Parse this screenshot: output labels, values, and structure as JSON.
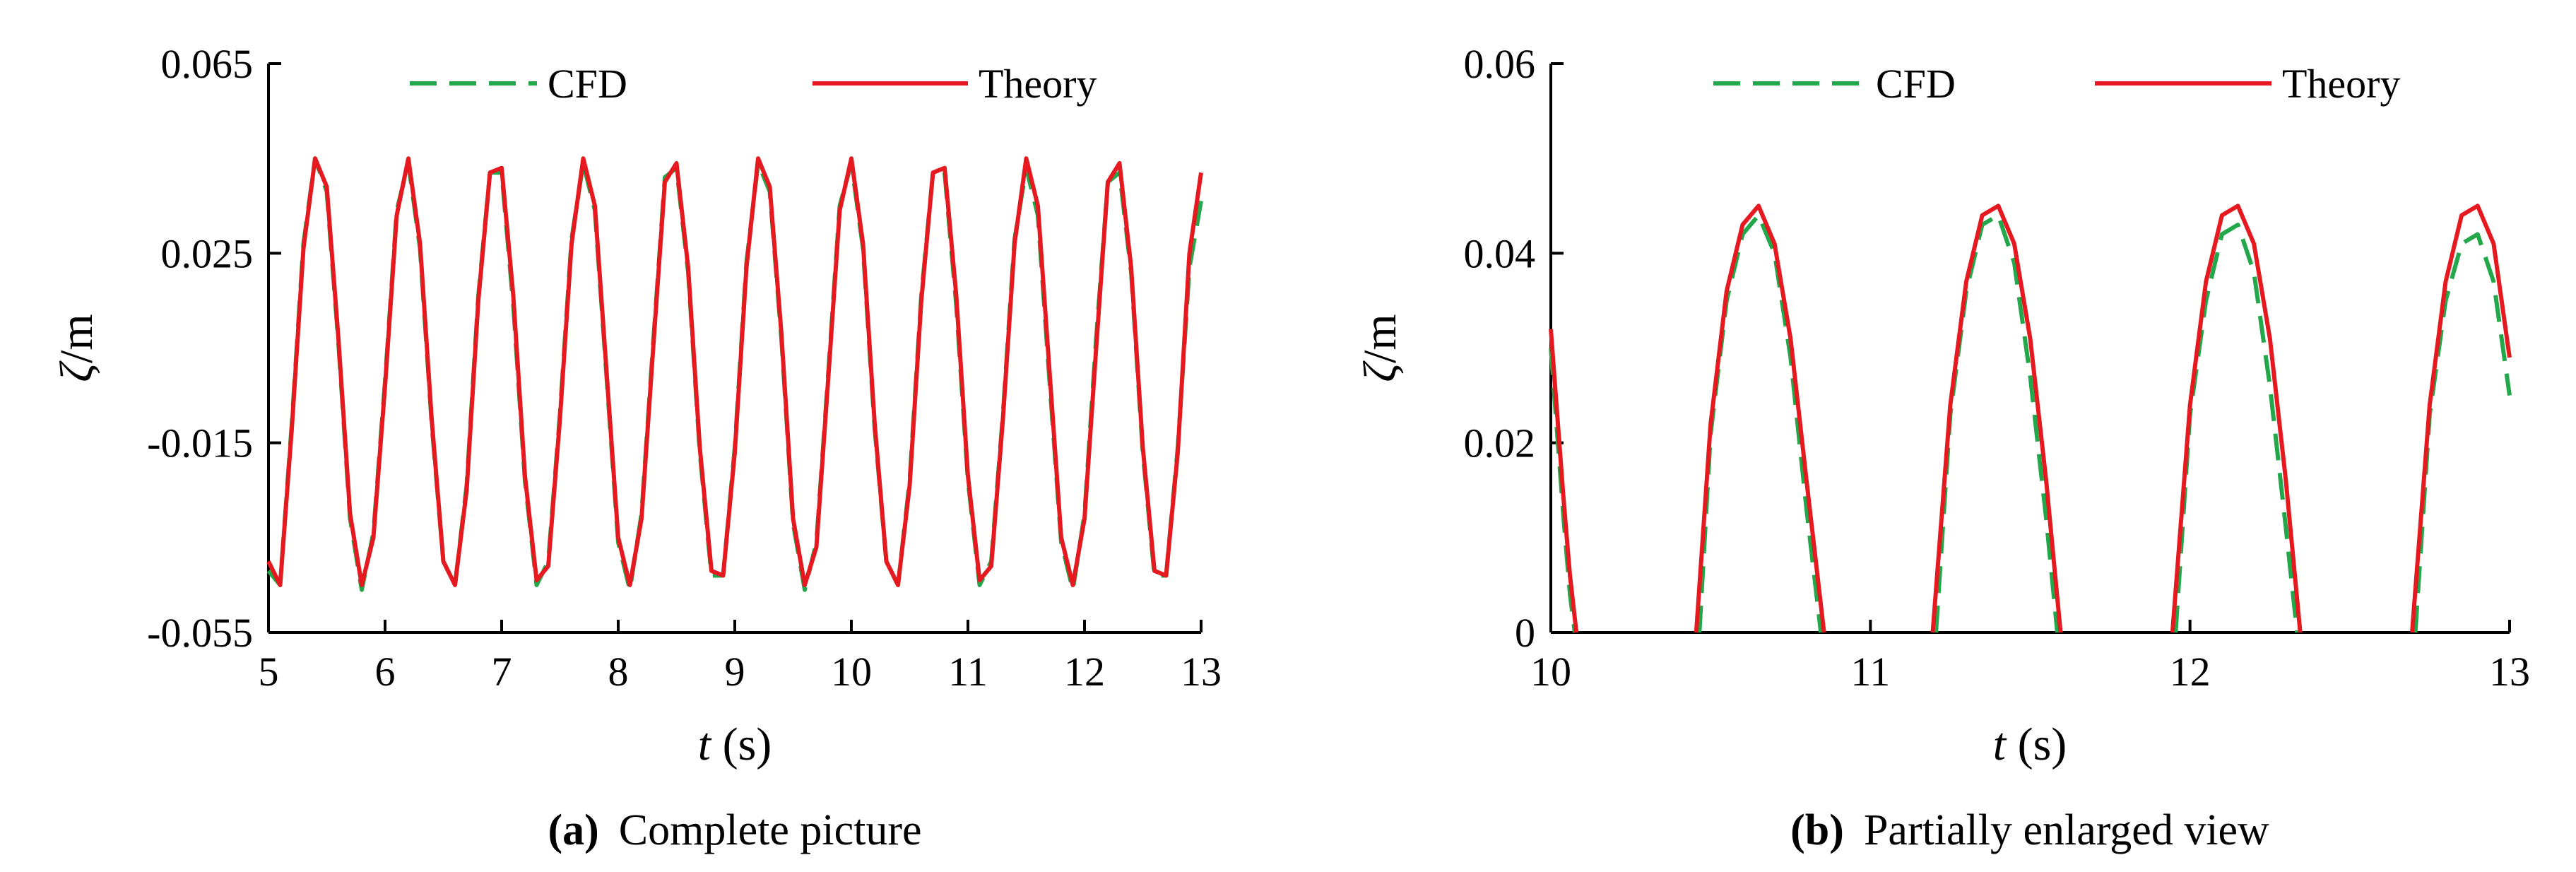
{
  "chart_data": [
    {
      "type": "line",
      "caption_label": "(a)",
      "caption_text": "Complete picture",
      "xlabel_var": "t",
      "xlabel_unit": " (s)",
      "ylabel_var": "ζ",
      "ylabel_unit": "/m",
      "xlim": [
        5,
        13
      ],
      "ylim": [
        -0.055,
        0.065
      ],
      "xticks": [
        5,
        6,
        7,
        8,
        9,
        10,
        11,
        12,
        13
      ],
      "xtick_labels": [
        "5",
        "6",
        "7",
        "8",
        "9",
        "10",
        "11",
        "12",
        "13"
      ],
      "yticks": [
        -0.055,
        -0.015,
        0.025,
        0.065
      ],
      "ytick_labels": [
        "-0.055",
        "-0.015",
        "0.025",
        "0.065"
      ],
      "legend_position": "top",
      "grid": false,
      "series": [
        {
          "name": "CFD",
          "style": "dashed",
          "color": "#22a84a",
          "x": [
            5.0,
            5.1,
            5.2,
            5.3,
            5.4,
            5.5,
            5.6,
            5.7,
            5.8,
            5.9,
            6.0,
            6.1,
            6.2,
            6.3,
            6.4,
            6.5,
            6.6,
            6.7,
            6.8,
            6.9,
            7.0,
            7.1,
            7.2,
            7.3,
            7.4,
            7.5,
            7.6,
            7.7,
            7.8,
            7.9,
            8.0,
            8.1,
            8.2,
            8.3,
            8.4,
            8.5,
            8.6,
            8.7,
            8.8,
            8.9,
            9.0,
            9.1,
            9.2,
            9.3,
            9.4,
            9.5,
            9.6,
            9.7,
            9.8,
            9.9,
            10.0,
            10.1,
            10.2,
            10.3,
            10.4,
            10.5,
            10.6,
            10.7,
            10.8,
            10.9,
            11.0,
            11.1,
            11.2,
            11.3,
            11.4,
            11.5,
            11.6,
            11.7,
            11.8,
            11.9,
            12.0,
            12.1,
            12.2,
            12.3,
            12.4,
            12.5,
            12.6,
            12.7,
            12.8,
            12.9,
            13.0
          ],
          "y": [
            -0.042,
            -0.045,
            -0.011,
            0.027,
            0.045,
            0.038,
            0.006,
            -0.031,
            -0.046,
            -0.034,
            -0.002,
            0.034,
            0.044,
            0.026,
            -0.011,
            -0.04,
            -0.045,
            -0.024,
            0.016,
            0.042,
            0.042,
            0.014,
            -0.023,
            -0.045,
            -0.04,
            -0.009,
            0.028,
            0.044,
            0.034,
            -0.001,
            -0.036,
            -0.046,
            -0.03,
            0.006,
            0.041,
            0.043,
            0.021,
            -0.017,
            -0.043,
            -0.043,
            -0.016,
            0.023,
            0.044,
            0.038,
            0.007,
            -0.032,
            -0.046,
            -0.036,
            -0.001,
            0.035,
            0.044,
            0.026,
            -0.012,
            -0.04,
            -0.045,
            -0.023,
            0.016,
            0.042,
            0.042,
            0.014,
            -0.023,
            -0.045,
            -0.04,
            -0.009,
            0.028,
            0.043,
            0.033,
            -0.002,
            -0.036,
            -0.046,
            -0.03,
            0.007,
            0.04,
            0.042,
            0.021,
            -0.017,
            -0.043,
            -0.043,
            -0.016,
            0.022,
            0.036
          ]
        },
        {
          "name": "Theory",
          "style": "solid",
          "color": "#e5191f",
          "x": [
            5.0,
            5.1,
            5.2,
            5.3,
            5.4,
            5.5,
            5.6,
            5.7,
            5.8,
            5.9,
            6.0,
            6.1,
            6.2,
            6.3,
            6.4,
            6.5,
            6.6,
            6.7,
            6.8,
            6.9,
            7.0,
            7.1,
            7.2,
            7.3,
            7.4,
            7.5,
            7.6,
            7.7,
            7.8,
            7.9,
            8.0,
            8.1,
            8.2,
            8.3,
            8.4,
            8.5,
            8.6,
            8.7,
            8.8,
            8.9,
            9.0,
            9.1,
            9.2,
            9.3,
            9.4,
            9.5,
            9.6,
            9.7,
            9.8,
            9.9,
            10.0,
            10.1,
            10.2,
            10.3,
            10.4,
            10.5,
            10.6,
            10.7,
            10.8,
            10.9,
            11.0,
            11.1,
            11.2,
            11.3,
            11.4,
            11.5,
            11.6,
            11.7,
            11.8,
            11.9,
            12.0,
            12.1,
            12.2,
            12.3,
            12.4,
            12.5,
            12.6,
            12.7,
            12.8,
            12.9,
            13.0
          ],
          "y": [
            -0.04,
            -0.045,
            -0.012,
            0.026,
            0.045,
            0.039,
            0.007,
            -0.03,
            -0.045,
            -0.035,
            -0.003,
            0.033,
            0.045,
            0.027,
            -0.01,
            -0.04,
            -0.045,
            -0.025,
            0.015,
            0.042,
            0.043,
            0.016,
            -0.022,
            -0.044,
            -0.041,
            -0.01,
            0.027,
            0.045,
            0.035,
            0.0,
            -0.035,
            -0.045,
            -0.031,
            0.005,
            0.04,
            0.044,
            0.022,
            -0.016,
            -0.042,
            -0.043,
            -0.017,
            0.022,
            0.045,
            0.039,
            0.008,
            -0.031,
            -0.045,
            -0.037,
            -0.002,
            0.034,
            0.045,
            0.027,
            -0.011,
            -0.04,
            -0.045,
            -0.024,
            0.015,
            0.042,
            0.043,
            0.016,
            -0.022,
            -0.044,
            -0.041,
            -0.01,
            0.027,
            0.045,
            0.035,
            0.0,
            -0.035,
            -0.045,
            -0.031,
            0.005,
            0.04,
            0.044,
            0.022,
            -0.016,
            -0.042,
            -0.043,
            -0.017,
            0.025,
            0.042
          ]
        }
      ]
    },
    {
      "type": "line",
      "caption_label": "(b)",
      "caption_text": "Partially enlarged view",
      "xlabel_var": "t",
      "xlabel_unit": " (s)",
      "ylabel_var": "ζ",
      "ylabel_unit": "/m",
      "xlim": [
        10,
        13
      ],
      "ylim": [
        0,
        0.06
      ],
      "xticks": [
        10,
        11,
        12,
        13
      ],
      "xtick_labels": [
        "10",
        "11",
        "12",
        "13"
      ],
      "yticks": [
        0,
        0.02,
        0.04,
        0.06
      ],
      "ytick_labels": [
        "0",
        "0.02",
        "0.04",
        "0.06"
      ],
      "legend_position": "top",
      "grid": false,
      "series": [
        {
          "name": "CFD",
          "style": "dashed",
          "color": "#22a84a",
          "segments": [
            {
              "x": [
                10.0,
                10.02,
                10.04,
                10.06,
                10.075
              ],
              "y": [
                0.03,
                0.021,
                0.012,
                0.004,
                0.0
              ]
            },
            {
              "x": [
                10.465,
                10.5,
                10.55,
                10.6,
                10.65,
                10.7,
                10.75,
                10.8,
                10.845
              ],
              "y": [
                0.0,
                0.021,
                0.035,
                0.042,
                0.044,
                0.04,
                0.029,
                0.013,
                0.0
              ]
            },
            {
              "x": [
                11.205,
                11.25,
                11.3,
                11.35,
                11.4,
                11.45,
                11.5,
                11.55,
                11.585
              ],
              "y": [
                0.0,
                0.023,
                0.036,
                0.043,
                0.044,
                0.039,
                0.027,
                0.012,
                0.0
              ]
            },
            {
              "x": [
                11.955,
                12.0,
                12.05,
                12.1,
                12.15,
                12.2,
                12.25,
                12.3,
                12.335
              ],
              "y": [
                0.0,
                0.023,
                0.035,
                0.042,
                0.043,
                0.038,
                0.026,
                0.011,
                0.0
              ]
            },
            {
              "x": [
                12.705,
                12.75,
                12.8,
                12.85,
                12.9,
                12.95,
                13.0
              ],
              "y": [
                0.0,
                0.023,
                0.035,
                0.041,
                0.042,
                0.037,
                0.025
              ]
            }
          ]
        },
        {
          "name": "Theory",
          "style": "solid",
          "color": "#e5191f",
          "segments": [
            {
              "x": [
                10.0,
                10.02,
                10.04,
                10.06,
                10.08
              ],
              "y": [
                0.032,
                0.023,
                0.014,
                0.006,
                0.0
              ]
            },
            {
              "x": [
                10.455,
                10.5,
                10.55,
                10.6,
                10.65,
                10.7,
                10.75,
                10.8,
                10.855
              ],
              "y": [
                0.0,
                0.022,
                0.036,
                0.043,
                0.045,
                0.041,
                0.031,
                0.016,
                0.0
              ]
            },
            {
              "x": [
                11.195,
                11.25,
                11.3,
                11.35,
                11.4,
                11.45,
                11.5,
                11.55,
                11.595
              ],
              "y": [
                0.0,
                0.024,
                0.037,
                0.044,
                0.045,
                0.041,
                0.031,
                0.016,
                0.0
              ]
            },
            {
              "x": [
                11.945,
                12.0,
                12.05,
                12.1,
                12.15,
                12.2,
                12.25,
                12.3,
                12.345
              ],
              "y": [
                0.0,
                0.024,
                0.037,
                0.044,
                0.045,
                0.041,
                0.031,
                0.016,
                0.0
              ]
            },
            {
              "x": [
                12.695,
                12.75,
                12.8,
                12.85,
                12.9,
                12.95,
                13.0
              ],
              "y": [
                0.0,
                0.024,
                0.037,
                0.044,
                0.045,
                0.041,
                0.029
              ]
            }
          ]
        }
      ]
    }
  ]
}
